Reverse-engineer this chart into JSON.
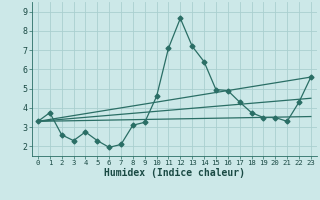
{
  "xlabel": "Humidex (Indice chaleur)",
  "bg_color": "#cce8e8",
  "grid_color": "#aacfcf",
  "line_color": "#2a6e65",
  "xlim": [
    -0.5,
    23.5
  ],
  "ylim": [
    1.5,
    9.5
  ],
  "xticks": [
    0,
    1,
    2,
    3,
    4,
    5,
    6,
    7,
    8,
    9,
    10,
    11,
    12,
    13,
    14,
    15,
    16,
    17,
    18,
    19,
    20,
    21,
    22,
    23
  ],
  "yticks": [
    2,
    3,
    4,
    5,
    6,
    7,
    8,
    9
  ],
  "line1_x": [
    0,
    1,
    2,
    3,
    4,
    5,
    6,
    7,
    8,
    9,
    10,
    11,
    12,
    13,
    14,
    15,
    16,
    17,
    18,
    19,
    20,
    21,
    22,
    23
  ],
  "line1_y": [
    3.3,
    3.75,
    2.6,
    2.3,
    2.75,
    2.3,
    1.95,
    2.1,
    3.1,
    3.25,
    4.6,
    7.1,
    8.65,
    7.2,
    6.4,
    4.95,
    4.9,
    4.3,
    3.75,
    3.5,
    3.5,
    3.3,
    4.3,
    5.6
  ],
  "line2_x": [
    0,
    23
  ],
  "line2_y": [
    3.3,
    3.55
  ],
  "line3_x": [
    0,
    23
  ],
  "line3_y": [
    3.3,
    5.6
  ],
  "line4_x": [
    0,
    23
  ],
  "line4_y": [
    3.3,
    4.5
  ],
  "marker": "D",
  "markersize": 2.5,
  "linewidth": 0.9
}
